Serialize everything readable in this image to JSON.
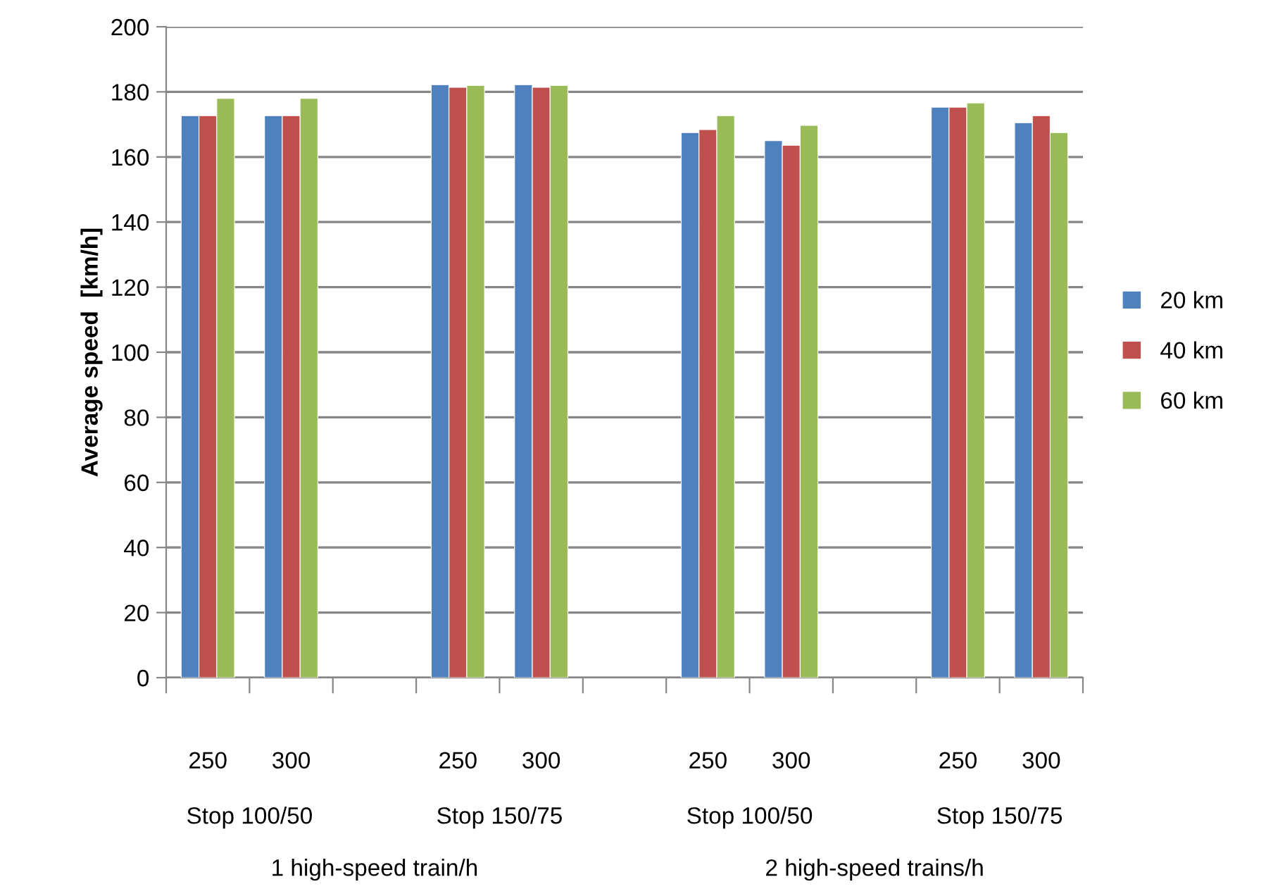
{
  "chart_data": {
    "type": "bar",
    "ylabel": "Average speed  [km/h]",
    "categories": [
      "250",
      "300",
      null,
      "250",
      "300",
      null,
      "250",
      "300",
      null,
      "250",
      "300"
    ],
    "series": [
      {
        "name": "20 km",
        "color": "#4f81bd",
        "values": [
          172.7,
          172.7,
          null,
          182.2,
          182.2,
          null,
          167.5,
          165,
          null,
          175.3,
          170.5
        ]
      },
      {
        "name": "40 km",
        "color": "#c0504d",
        "values": [
          172.7,
          172.7,
          null,
          181.4,
          181.4,
          null,
          168.4,
          163.6,
          null,
          175.3,
          172.7
        ]
      },
      {
        "name": "60 km",
        "color": "#9bbb59",
        "values": [
          178,
          178,
          null,
          182,
          182,
          null,
          172.7,
          169.7,
          null,
          176.6,
          167.5
        ]
      }
    ],
    "ylim": [
      0,
      200
    ],
    "yticks": [
      0,
      20,
      40,
      60,
      80,
      100,
      120,
      140,
      160,
      180,
      200
    ],
    "grid": "y",
    "legend": "right",
    "annotations": [
      "Stop 100/50",
      "Stop 150/75",
      "Stop 100/50",
      "Stop 150/75",
      "1 high-speed train/h",
      "2 high-speed trains/h"
    ]
  }
}
